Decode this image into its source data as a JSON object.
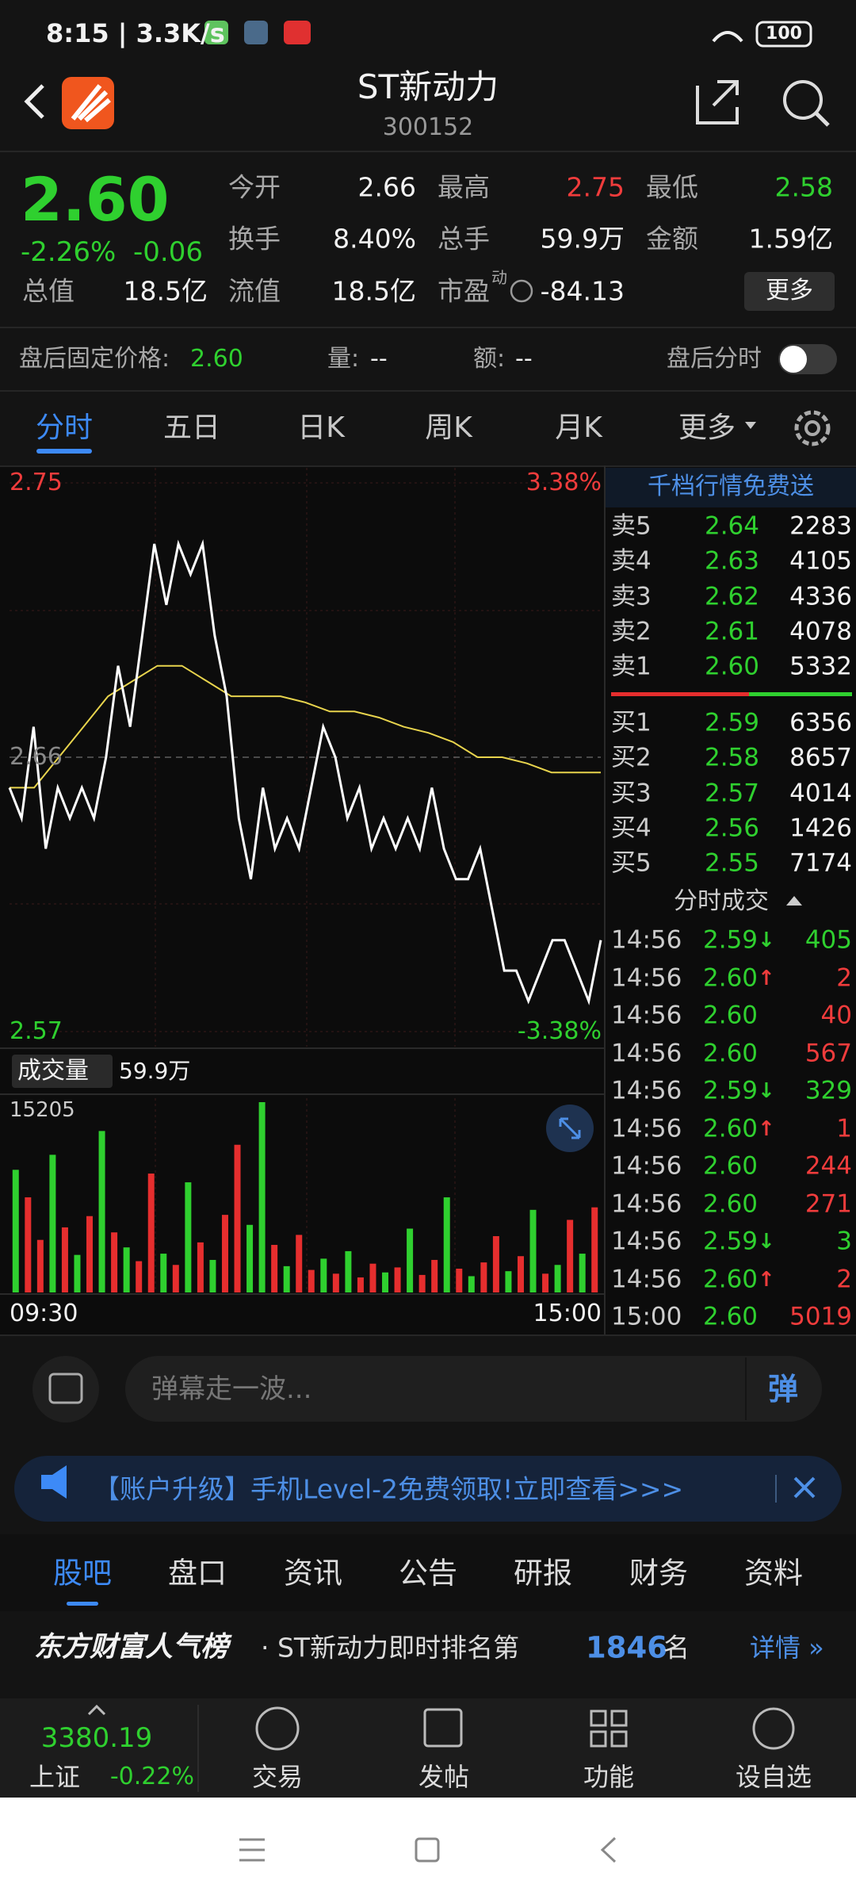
{
  "status": {
    "time": "8:15 | 3.3K/s",
    "battery": "100"
  },
  "header": {
    "title": "ST新动力",
    "code": "300152"
  },
  "quote": {
    "price": "2.60",
    "change_pct": "-2.26%",
    "change": "-0.06",
    "fields": [
      {
        "label": "今开",
        "value": "2.66",
        "color": "#f2f2f2"
      },
      {
        "label": "最高",
        "value": "2.75",
        "color": "#f03c3c"
      },
      {
        "label": "最低",
        "value": "2.58",
        "color": "#2fd02f"
      },
      {
        "label": "换手",
        "value": "8.40%",
        "color": "#f2f2f2"
      },
      {
        "label": "总手",
        "value": "59.9万",
        "color": "#f2f2f2"
      },
      {
        "label": "金额",
        "value": "1.59亿",
        "color": "#f2f2f2"
      },
      {
        "label": "总值",
        "value": "18.5亿",
        "color": "#f2f2f2"
      },
      {
        "label": "流值",
        "value": "18.5亿",
        "color": "#f2f2f2"
      },
      {
        "label": "市盈",
        "value": "-84.13",
        "color": "#f2f2f2"
      }
    ],
    "pe_sup": "动",
    "more": "更多"
  },
  "after_hours": {
    "price_label": "盘后固定价格:",
    "price": "2.60",
    "volume_label": "量:",
    "volume": "--",
    "amount_label": "额:",
    "amount": "--",
    "chart_label": "盘后分时"
  },
  "tabs": [
    "分时",
    "五日",
    "日K",
    "周K",
    "月K",
    "更多"
  ],
  "chart": {
    "type": "line",
    "ylim": [
      2.57,
      2.75
    ],
    "yticks": [
      2.75,
      2.66,
      2.57
    ],
    "y2lim": [
      -3.38,
      3.38
    ],
    "y2ticks": [
      {
        "value": 3.38,
        "label": "3.38%"
      },
      {
        "value": -3.38,
        "label": "-3.38%"
      }
    ],
    "price": {
      "color": "#ffffff",
      "values": [
        2.65,
        2.64,
        2.67,
        2.63,
        2.65,
        2.64,
        2.65,
        2.64,
        2.66,
        2.69,
        2.67,
        2.7,
        2.73,
        2.71,
        2.73,
        2.72,
        2.73,
        2.7,
        2.68,
        2.64,
        2.62,
        2.65,
        2.63,
        2.64,
        2.63,
        2.65,
        2.67,
        2.66,
        2.64,
        2.65,
        2.63,
        2.64,
        2.63,
        2.64,
        2.63,
        2.65,
        2.63,
        2.62,
        2.62,
        2.63,
        2.61,
        2.59,
        2.59,
        2.58,
        2.59,
        2.6,
        2.6,
        2.59,
        2.58,
        2.6
      ]
    },
    "average": {
      "color": "#e8d44d",
      "values": [
        2.65,
        2.65,
        2.66,
        2.67,
        2.68,
        2.685,
        2.69,
        2.69,
        2.685,
        2.68,
        2.68,
        2.68,
        2.678,
        2.675,
        2.675,
        2.673,
        2.67,
        2.668,
        2.665,
        2.66,
        2.66,
        2.658,
        2.655,
        2.655,
        2.655
      ]
    },
    "x_labels": [
      "09:30",
      "15:00"
    ]
  },
  "volume": {
    "title": "成交量",
    "total": "59.9万",
    "ylim": [
      0,
      15205
    ],
    "yticks": [
      15205
    ],
    "values": [
      9800,
      7600,
      4200,
      11000,
      5200,
      3000,
      6100,
      12900,
      4800,
      3600,
      2500,
      9500,
      3100,
      2200,
      8800,
      4000,
      2600,
      6200,
      11800,
      5400,
      15205,
      3800,
      2100,
      4600,
      1800,
      2700,
      1500,
      3300,
      1200,
      2300,
      1600,
      2000,
      5100,
      1400,
      2600,
      7600,
      1900,
      1300,
      2400,
      4500,
      1700,
      2900,
      6600,
      1500,
      2200,
      5800,
      3100,
      6800
    ],
    "colors": [
      "#2fd02f",
      "#e62e2e",
      "#e62e2e",
      "#2fd02f",
      "#e62e2e",
      "#2fd02f",
      "#e62e2e",
      "#2fd02f",
      "#e62e2e",
      "#2fd02f",
      "#e62e2e",
      "#e62e2e",
      "#2fd02f",
      "#e62e2e",
      "#2fd02f",
      "#e62e2e",
      "#2fd02f",
      "#e62e2e",
      "#e62e2e",
      "#2fd02f",
      "#2fd02f",
      "#e62e2e",
      "#2fd02f",
      "#e62e2e",
      "#e62e2e",
      "#2fd02f",
      "#e62e2e",
      "#2fd02f",
      "#e62e2e",
      "#e62e2e",
      "#2fd02f",
      "#e62e2e",
      "#2fd02f",
      "#e62e2e",
      "#e62e2e",
      "#2fd02f",
      "#e62e2e",
      "#2fd02f",
      "#e62e2e",
      "#e62e2e",
      "#2fd02f",
      "#e62e2e",
      "#2fd02f",
      "#e62e2e",
      "#2fd02f",
      "#e62e2e",
      "#2fd02f",
      "#e62e2e"
    ]
  },
  "order_book": {
    "promo": "千档行情免费送",
    "sells": [
      {
        "label": "卖5",
        "price": "2.64",
        "volume": "2283"
      },
      {
        "label": "卖4",
        "price": "2.63",
        "volume": "4105"
      },
      {
        "label": "卖3",
        "price": "2.62",
        "volume": "4336"
      },
      {
        "label": "卖2",
        "price": "2.61",
        "volume": "4078"
      },
      {
        "label": "卖1",
        "price": "2.60",
        "volume": "5332"
      }
    ],
    "buys": [
      {
        "label": "买1",
        "price": "2.59",
        "volume": "6356"
      },
      {
        "label": "买2",
        "price": "2.58",
        "volume": "8657"
      },
      {
        "label": "买3",
        "price": "2.57",
        "volume": "4014"
      },
      {
        "label": "买4",
        "price": "2.56",
        "volume": "1426"
      },
      {
        "label": "买5",
        "price": "2.55",
        "volume": "7174"
      }
    ]
  },
  "trades_title": "分时成交",
  "trades": [
    {
      "time": "14:56",
      "price": "2.59",
      "arrow": "↓",
      "volume": "405",
      "arrow_color": "#2fd02f",
      "volume_color": "#2fd02f"
    },
    {
      "time": "14:56",
      "price": "2.60",
      "arrow": "↑",
      "volume": "2",
      "arrow_color": "#f03c3c",
      "volume_color": "#f03c3c"
    },
    {
      "time": "14:56",
      "price": "2.60",
      "arrow": "",
      "volume": "40",
      "arrow_color": "#f03c3c",
      "volume_color": "#f03c3c"
    },
    {
      "time": "14:56",
      "price": "2.60",
      "arrow": "",
      "volume": "567",
      "arrow_color": "#f03c3c",
      "volume_color": "#f03c3c"
    },
    {
      "time": "14:56",
      "price": "2.59",
      "arrow": "↓",
      "volume": "329",
      "arrow_color": "#2fd02f",
      "volume_color": "#2fd02f"
    },
    {
      "time": "14:56",
      "price": "2.60",
      "arrow": "↑",
      "volume": "1",
      "arrow_color": "#f03c3c",
      "volume_color": "#f03c3c"
    },
    {
      "time": "14:56",
      "price": "2.60",
      "arrow": "",
      "volume": "244",
      "arrow_color": "#f03c3c",
      "volume_color": "#f03c3c"
    },
    {
      "time": "14:56",
      "price": "2.60",
      "arrow": "",
      "volume": "271",
      "arrow_color": "#f03c3c",
      "volume_color": "#f03c3c"
    },
    {
      "time": "14:56",
      "price": "2.59",
      "arrow": "↓",
      "volume": "3",
      "arrow_color": "#2fd02f",
      "volume_color": "#2fd02f"
    },
    {
      "time": "14:56",
      "price": "2.60",
      "arrow": "↑",
      "volume": "2",
      "arrow_color": "#f03c3c",
      "volume_color": "#f03c3c"
    },
    {
      "time": "15:00",
      "price": "2.60",
      "arrow": "",
      "volume": "5019",
      "arrow_color": "#f03c3c",
      "volume_color": "#f03c3c"
    }
  ],
  "input": {
    "placeholder": "弹幕走一波...",
    "button": "弹"
  },
  "banner": {
    "text": "【账户升级】手机Level-2免费领取!立即查看>>>"
  },
  "bottom_tabs": [
    "股吧",
    "盘口",
    "资讯",
    "公告",
    "研报",
    "财务",
    "资料"
  ],
  "popularity": {
    "brand": "东方财富人气榜",
    "text": "· ST新动力即时排名第",
    "rank": "1846",
    "unit": "名",
    "detail": "详情 »"
  },
  "bottom_nav": {
    "index_value": "3380.19",
    "index_name": "上证",
    "index_change": "-0.22%",
    "items": [
      "交易",
      "发帖",
      "功能",
      "设自选"
    ]
  }
}
